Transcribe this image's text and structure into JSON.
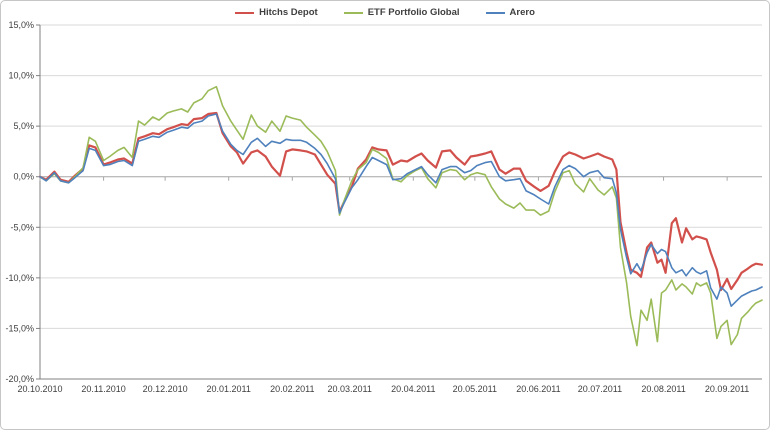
{
  "chart_data": {
    "type": "line",
    "title": "",
    "xlabel": "",
    "ylabel": "",
    "grid": "horizontal",
    "legend_position": "top-center",
    "ylim": [
      -20,
      15
    ],
    "y_ticks": [
      15,
      10,
      5,
      0,
      -5,
      -10,
      -15,
      -20
    ],
    "y_tick_labels": [
      "15,0%",
      "10,0%",
      "5,0%",
      "0,0%",
      "-5,0%",
      "-10,0%",
      "-15,0%",
      "-20,0%"
    ],
    "x_range_days": [
      0,
      352
    ],
    "x_tick_days": [
      0,
      31,
      61,
      92,
      123,
      151,
      182,
      212,
      243,
      273,
      304,
      335
    ],
    "x_tick_labels": [
      "20.10.2010",
      "20.11.2010",
      "20.12.2010",
      "20.01.2011",
      "20.02.2011",
      "20.03.2011",
      "20.04.2011",
      "20.05.2011",
      "20.06.2011",
      "20.07.2011",
      "20.08.2011",
      "20.09.2011"
    ],
    "x_days": [
      0,
      3,
      7,
      10,
      14,
      17,
      21,
      24,
      27,
      31,
      34,
      38,
      41,
      45,
      48,
      51,
      55,
      58,
      62,
      65,
      69,
      72,
      75,
      79,
      82,
      86,
      89,
      93,
      96,
      99,
      103,
      106,
      110,
      113,
      117,
      120,
      123,
      127,
      130,
      134,
      137,
      140,
      144,
      146,
      148,
      152,
      155,
      159,
      162,
      165,
      169,
      172,
      176,
      179,
      183,
      186,
      189,
      193,
      196,
      200,
      203,
      207,
      210,
      213,
      217,
      220,
      224,
      227,
      231,
      234,
      237,
      241,
      244,
      248,
      251,
      255,
      258,
      261,
      265,
      268,
      272,
      275,
      279,
      281,
      283,
      286,
      288,
      291,
      293,
      296,
      298,
      301,
      303,
      305,
      308,
      310,
      313,
      315,
      318,
      320,
      322,
      325,
      327,
      330,
      332,
      335,
      337,
      340,
      342,
      345,
      347,
      349,
      352
    ],
    "series": [
      {
        "name": "Hitchs Depot",
        "color": "#d2504b",
        "stroke_width": 2.2,
        "values": [
          0.0,
          -0.3,
          0.5,
          -0.3,
          -0.5,
          0.1,
          0.8,
          3.1,
          2.9,
          1.2,
          1.4,
          1.7,
          1.8,
          1.3,
          3.8,
          4.0,
          4.3,
          4.2,
          4.7,
          4.9,
          5.2,
          5.1,
          5.7,
          5.8,
          6.2,
          6.3,
          4.3,
          3.0,
          2.4,
          1.3,
          2.4,
          2.6,
          2.0,
          1.0,
          0.1,
          2.5,
          2.7,
          2.6,
          2.5,
          2.2,
          1.2,
          0.2,
          -0.7,
          -3.5,
          -2.6,
          -1.0,
          0.8,
          1.7,
          2.9,
          2.7,
          2.6,
          1.2,
          1.6,
          1.5,
          2.0,
          2.3,
          1.6,
          0.9,
          2.5,
          2.6,
          1.9,
          1.2,
          2.0,
          2.1,
          2.3,
          2.5,
          0.7,
          0.3,
          0.8,
          0.8,
          -0.4,
          -1.0,
          -1.4,
          -0.9,
          0.5,
          2.0,
          2.4,
          2.2,
          1.8,
          2.0,
          2.3,
          2.0,
          1.7,
          0.7,
          -4.5,
          -7.5,
          -9.2,
          -9.5,
          -9.9,
          -7.0,
          -6.5,
          -8.5,
          -8.2,
          -9.5,
          -4.6,
          -4.1,
          -6.5,
          -5.1,
          -6.2,
          -5.9,
          -6.0,
          -6.2,
          -7.5,
          -9.2,
          -11.2,
          -10.1,
          -11.1,
          -10.2,
          -9.5,
          -9.1,
          -8.8,
          -8.6,
          -8.7
        ]
      },
      {
        "name": "ETF Portfolio Global",
        "color": "#9bbb59",
        "stroke_width": 1.6,
        "values": [
          0.0,
          -0.4,
          0.3,
          -0.4,
          -0.6,
          0.0,
          0.9,
          3.9,
          3.5,
          1.6,
          2.0,
          2.6,
          2.9,
          1.9,
          5.5,
          5.1,
          5.9,
          5.6,
          6.3,
          6.5,
          6.7,
          6.4,
          7.3,
          7.7,
          8.5,
          8.9,
          7.0,
          5.5,
          4.6,
          3.7,
          6.1,
          5.0,
          4.4,
          5.5,
          4.5,
          6.0,
          5.8,
          5.6,
          4.9,
          4.1,
          3.5,
          2.5,
          0.6,
          -3.8,
          -2.5,
          -0.4,
          0.7,
          1.4,
          2.7,
          2.4,
          1.8,
          -0.2,
          -0.5,
          0.1,
          0.6,
          0.9,
          -0.2,
          -1.1,
          0.4,
          0.7,
          0.6,
          -0.3,
          0.2,
          0.4,
          0.2,
          -1.0,
          -2.2,
          -2.7,
          -3.1,
          -2.6,
          -3.3,
          -3.3,
          -3.8,
          -3.4,
          -1.5,
          0.4,
          0.6,
          -0.7,
          -1.5,
          -0.2,
          -1.3,
          -1.8,
          -1.0,
          -2.1,
          -7.0,
          -10.5,
          -13.8,
          -16.7,
          -13.2,
          -14.2,
          -12.1,
          -16.3,
          -11.5,
          -11.2,
          -10.2,
          -11.2,
          -10.6,
          -10.9,
          -11.6,
          -10.5,
          -10.8,
          -10.5,
          -11.5,
          -16.0,
          -14.8,
          -14.2,
          -16.6,
          -15.6,
          -14.0,
          -13.4,
          -12.9,
          -12.5,
          -12.2
        ]
      },
      {
        "name": "Arero",
        "color": "#4f81bd",
        "stroke_width": 1.6,
        "values": [
          0.0,
          -0.4,
          0.4,
          -0.4,
          -0.6,
          -0.1,
          0.6,
          2.8,
          2.6,
          1.1,
          1.2,
          1.5,
          1.6,
          1.1,
          3.5,
          3.7,
          4.0,
          3.9,
          4.4,
          4.6,
          4.9,
          4.8,
          5.3,
          5.5,
          6.0,
          6.2,
          4.5,
          3.2,
          2.6,
          2.2,
          3.4,
          3.8,
          3.0,
          3.5,
          3.3,
          3.7,
          3.6,
          3.6,
          3.4,
          2.8,
          2.2,
          1.3,
          -0.2,
          -3.6,
          -2.7,
          -1.1,
          -0.3,
          1.0,
          1.9,
          1.6,
          1.2,
          -0.3,
          -0.2,
          0.3,
          0.7,
          1.0,
          0.2,
          -0.6,
          0.7,
          1.0,
          1.0,
          0.4,
          0.6,
          1.1,
          1.4,
          1.5,
          0.0,
          -0.4,
          -0.3,
          -0.2,
          -1.4,
          -1.8,
          -2.2,
          -2.7,
          -1.0,
          0.7,
          1.1,
          0.8,
          0.0,
          0.4,
          0.6,
          -0.1,
          -0.2,
          -1.6,
          -5.2,
          -8.0,
          -9.6,
          -8.6,
          -9.3,
          -7.5,
          -6.7,
          -7.6,
          -7.2,
          -7.4,
          -9.0,
          -9.5,
          -9.2,
          -9.8,
          -9.0,
          -9.4,
          -9.6,
          -9.3,
          -11.0,
          -12.1,
          -10.9,
          -11.5,
          -12.8,
          -12.2,
          -11.8,
          -11.5,
          -11.3,
          -11.2,
          -10.9
        ]
      }
    ],
    "colors": {
      "gridline": "#d9d9d9",
      "zero_line": "#a6a6a6",
      "axis_line": "#808080",
      "label_text": "#3f3f3f"
    }
  }
}
